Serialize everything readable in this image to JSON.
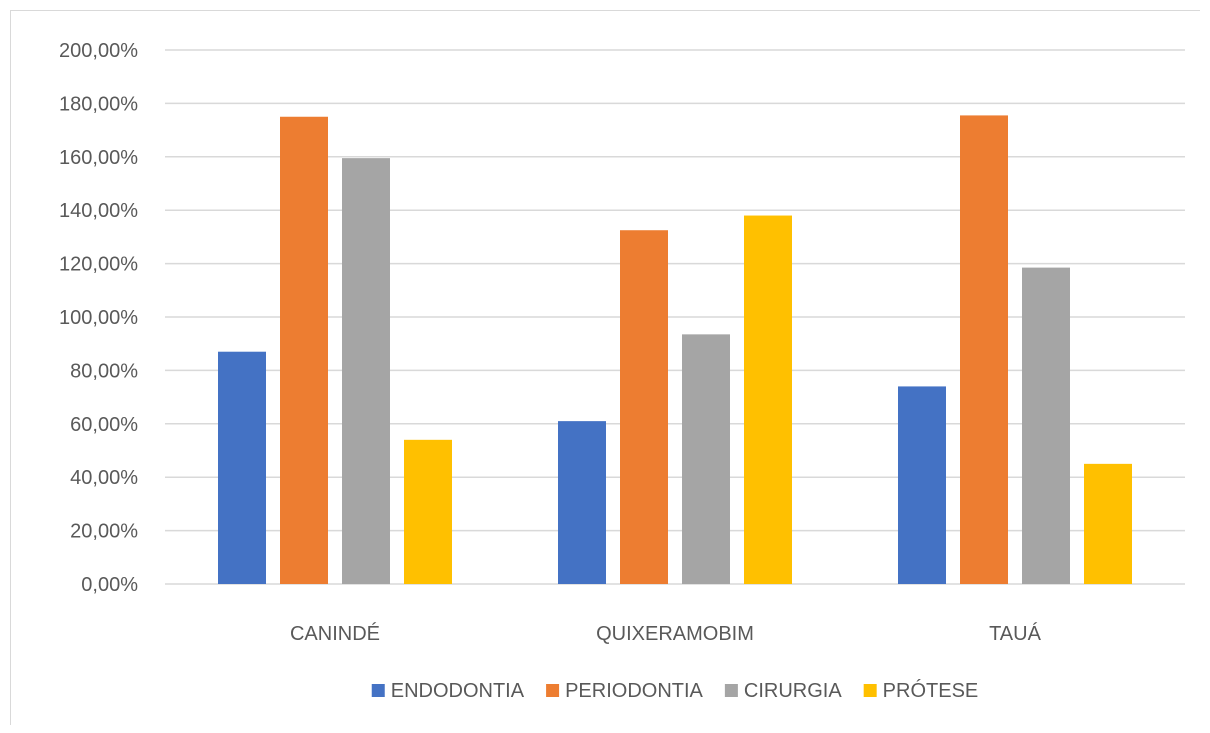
{
  "chart_data": {
    "type": "bar",
    "title": "",
    "xlabel": "",
    "ylabel": "",
    "categories": [
      "CANINDÉ",
      "QUIXERAMOBIM",
      "TAUÁ"
    ],
    "series": [
      {
        "name": "ENDODONTIA",
        "color": "#4472C4",
        "values": [
          87,
          61,
          74
        ]
      },
      {
        "name": "PERIODONTIA",
        "color": "#ED7D31",
        "values": [
          175,
          132.5,
          175.5
        ]
      },
      {
        "name": "CIRURGIA",
        "color": "#A5A5A5",
        "values": [
          159.5,
          93.5,
          118.5
        ]
      },
      {
        "name": "PRÓTESE",
        "color": "#FFC000",
        "values": [
          54,
          138,
          45
        ]
      }
    ],
    "ylim": [
      0,
      200
    ],
    "yticks": [
      "0,00%",
      "20,00%",
      "40,00%",
      "60,00%",
      "80,00%",
      "100,00%",
      "120,00%",
      "140,00%",
      "160,00%",
      "180,00%",
      "200,00%"
    ],
    "grid": true,
    "legend_position": "bottom"
  }
}
